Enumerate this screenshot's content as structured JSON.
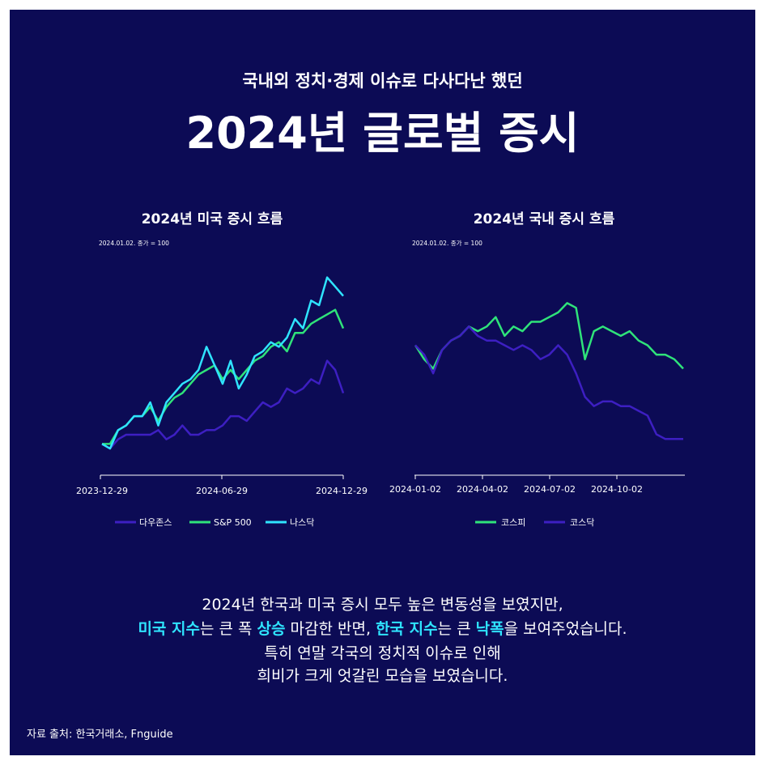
{
  "header": {
    "subtitle": "국내외 정치·경제 이슈로 다사다난 했던",
    "title": "2024년 글로벌 증시"
  },
  "colors": {
    "background": "#0c0b55",
    "dow": "#3d1fc2",
    "sp500": "#2fe37a",
    "nasdaq": "#2fe4ff",
    "kospi": "#2fe37a",
    "kosdaq": "#3d1fc2",
    "highlight": "#2fe4ff"
  },
  "chart_data": [
    {
      "type": "line",
      "title": "2024년 미국 증시 흐름",
      "note": "2024.01.02. 종가 = 100",
      "x_ticks": [
        "2023-12-29",
        "2024-06-29",
        "2024-12-29"
      ],
      "legend_position": "bottom",
      "ylim": [
        95,
        137
      ],
      "series": [
        {
          "name": "다우존스",
          "color": "#3d1fc2",
          "values": [
            100,
            99,
            101,
            102,
            102,
            102,
            102,
            103,
            101,
            102,
            104,
            102,
            102,
            103,
            103,
            104,
            106,
            106,
            105,
            107,
            109,
            108,
            109,
            112,
            111,
            112,
            114,
            113,
            118,
            116,
            111
          ]
        },
        {
          "name": "S&P 500",
          "color": "#2fe37a",
          "values": [
            100,
            100,
            103,
            104,
            106,
            106,
            108,
            105,
            108,
            110,
            111,
            113,
            115,
            116,
            117,
            114,
            116,
            114,
            116,
            118,
            119,
            121,
            122,
            120,
            124,
            124,
            126,
            127,
            128,
            129,
            125
          ]
        },
        {
          "name": "나스닥",
          "color": "#2fe4ff",
          "values": [
            100,
            99,
            103,
            104,
            106,
            106,
            109,
            104,
            109,
            111,
            113,
            114,
            116,
            121,
            117,
            113,
            118,
            112,
            115,
            119,
            120,
            122,
            121,
            123,
            127,
            125,
            131,
            130,
            136,
            134,
            132
          ]
        }
      ]
    },
    {
      "type": "line",
      "title": "2024년 국내 증시 흐름",
      "note": "2024.01.02. 종가 = 100",
      "x_ticks": [
        "2024-01-02",
        "2024-04-02",
        "2024-07-02",
        "2024-10-02"
      ],
      "legend_position": "bottom",
      "ylim": [
        74,
        112
      ],
      "series": [
        {
          "name": "코스피",
          "color": "#2fe37a",
          "values": [
            100,
            97,
            95,
            99,
            101,
            102,
            104,
            103,
            104,
            106,
            102,
            104,
            103,
            105,
            105,
            106,
            107,
            109,
            108,
            97,
            103,
            104,
            103,
            102,
            103,
            101,
            100,
            98,
            98,
            97,
            95
          ]
        },
        {
          "name": "코스닥",
          "color": "#3d1fc2",
          "values": [
            100,
            98,
            94,
            99,
            101,
            102,
            104,
            102,
            101,
            101,
            100,
            99,
            100,
            99,
            97,
            98,
            100,
            98,
            94,
            89,
            87,
            88,
            88,
            87,
            87,
            86,
            85,
            81,
            80,
            80,
            80
          ]
        }
      ]
    }
  ],
  "description": {
    "line1": "2024년 한국과 미국 증시 모두 높은 변동성을 보였지만,",
    "line2": {
      "us_index": "미국 지수",
      "t1": "는 큰 폭 ",
      "rise": "상승",
      "t2": " 마감한 반면, ",
      "kr_index": "한국 지수",
      "t3": "는 큰 ",
      "fall": "낙폭",
      "t4": "을 보여주었습니다."
    },
    "line3": "특히 연말 각국의 정치적 이슈로 인해",
    "line4": "희비가 크게 엇갈린 모습을 보였습니다."
  },
  "source": "자료 출처: 한국거래소, Fnguide"
}
